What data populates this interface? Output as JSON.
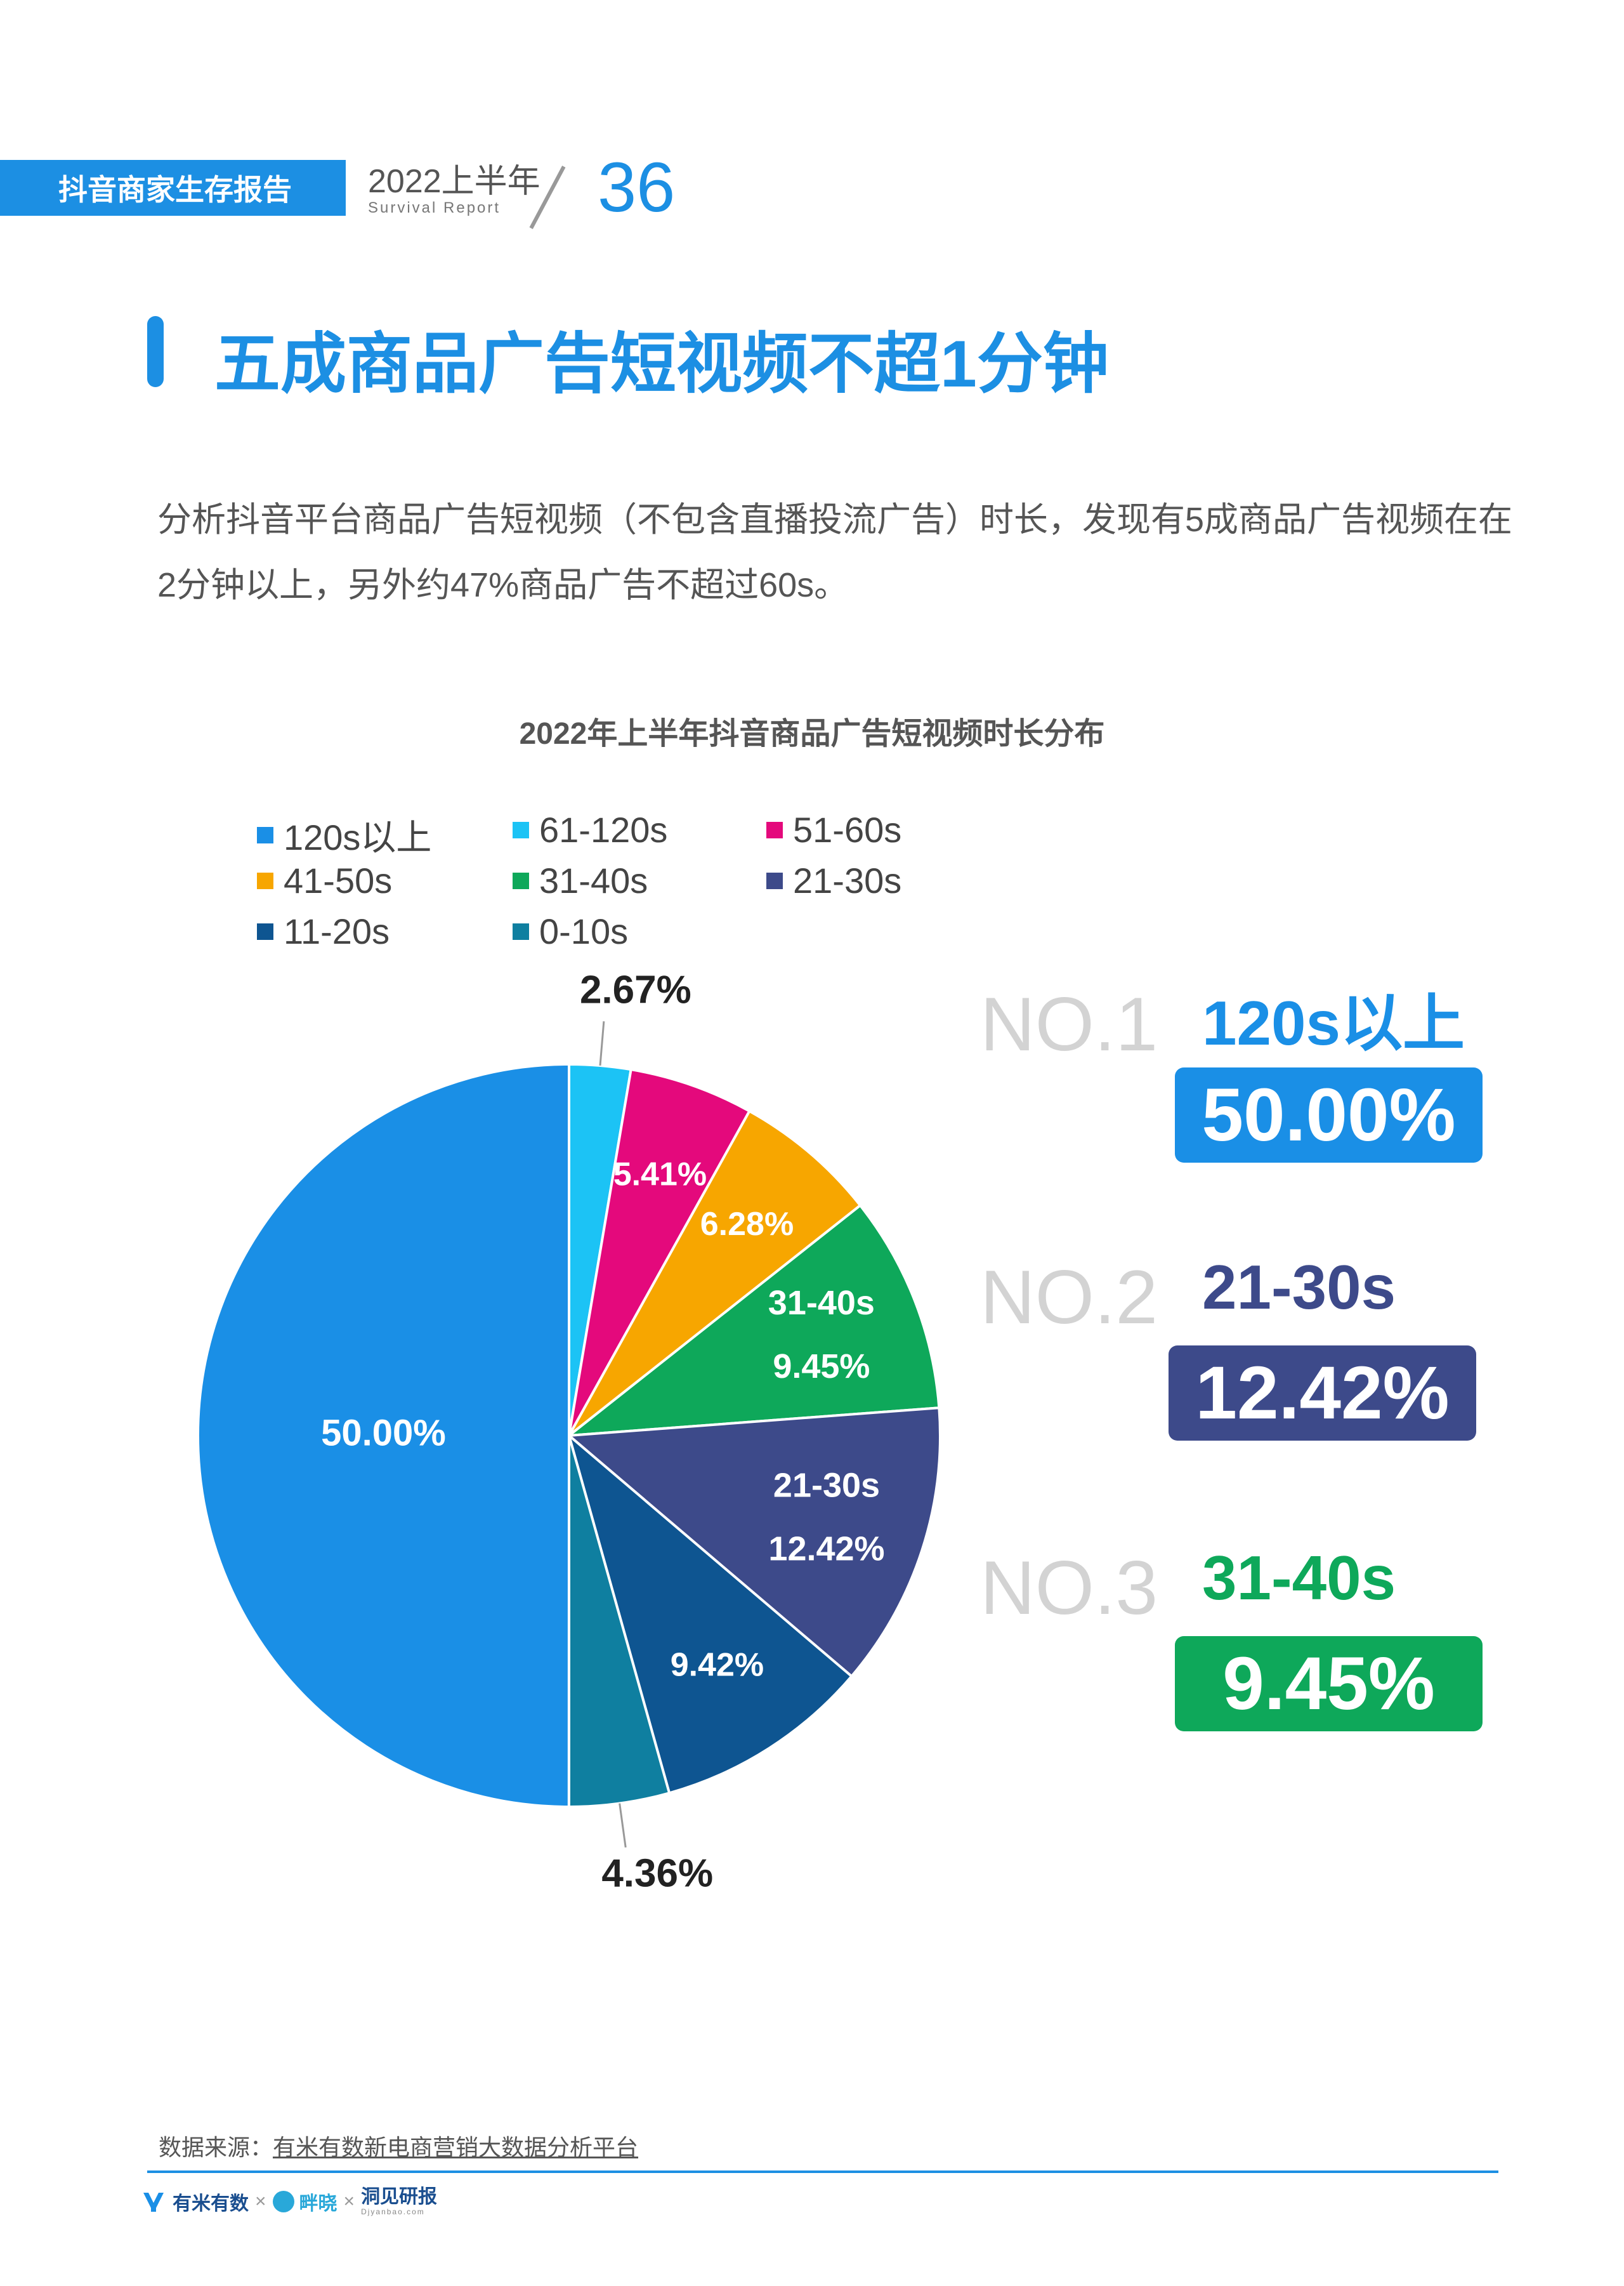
{
  "header": {
    "report_tag": "抖音商家生存报告",
    "year": "2022上半年",
    "subtitle": "Survival Report",
    "page_number": "36"
  },
  "title": "五成商品广告短视频不超1分钟",
  "intro": "分析抖音平台商品广告短视频（不包含直播投流广告）时长，发现有5成商品广告视频在在2分钟以上，另外约47%商品广告不超过60s。",
  "chart_data": {
    "type": "pie",
    "title": "2022年上半年抖音商品广告短视频时长分布",
    "legend_position": "top-left",
    "slices": [
      {
        "label": "120s以上",
        "value": 50.0,
        "display": "50.00%",
        "color": "#1a8fe6"
      },
      {
        "label": "61-120s",
        "value": 2.67,
        "display": "2.67%",
        "color": "#1cc3f5"
      },
      {
        "label": "51-60s",
        "value": 5.41,
        "display": "5.41%",
        "color": "#e4097c"
      },
      {
        "label": "41-50s",
        "value": 6.28,
        "display": "6.28%",
        "color": "#f7a600"
      },
      {
        "label": "31-40s",
        "value": 9.45,
        "display": "9.45%",
        "color": "#0ea85a",
        "inner_name": "31-40s"
      },
      {
        "label": "21-30s",
        "value": 12.42,
        "display": "12.42%",
        "color": "#3d4a8a",
        "inner_name": "21-30s"
      },
      {
        "label": "11-20s",
        "value": 9.42,
        "display": "9.42%",
        "color": "#0e5591"
      },
      {
        "label": "0-10s",
        "value": 4.36,
        "display": "4.36%",
        "color": "#0f7fa0"
      }
    ]
  },
  "ranking": [
    {
      "no": "NO.1",
      "name": "120s以上",
      "value": "50.00%",
      "color": "#1a8fe6"
    },
    {
      "no": "NO.2",
      "name": "21-30s",
      "value": "12.42%",
      "color": "#3d4a8a"
    },
    {
      "no": "NO.3",
      "name": "31-40s",
      "value": "9.45%",
      "color": "#0ea85a"
    }
  ],
  "source": {
    "label": "数据来源：",
    "text": "有米有数新电商营销大数据分析平台"
  },
  "footer": {
    "logo1": "有米有数",
    "logo2": "畔晓",
    "logo3": "洞见研报",
    "logo3_sub": "Djyanbao.com",
    "separator": "×"
  }
}
